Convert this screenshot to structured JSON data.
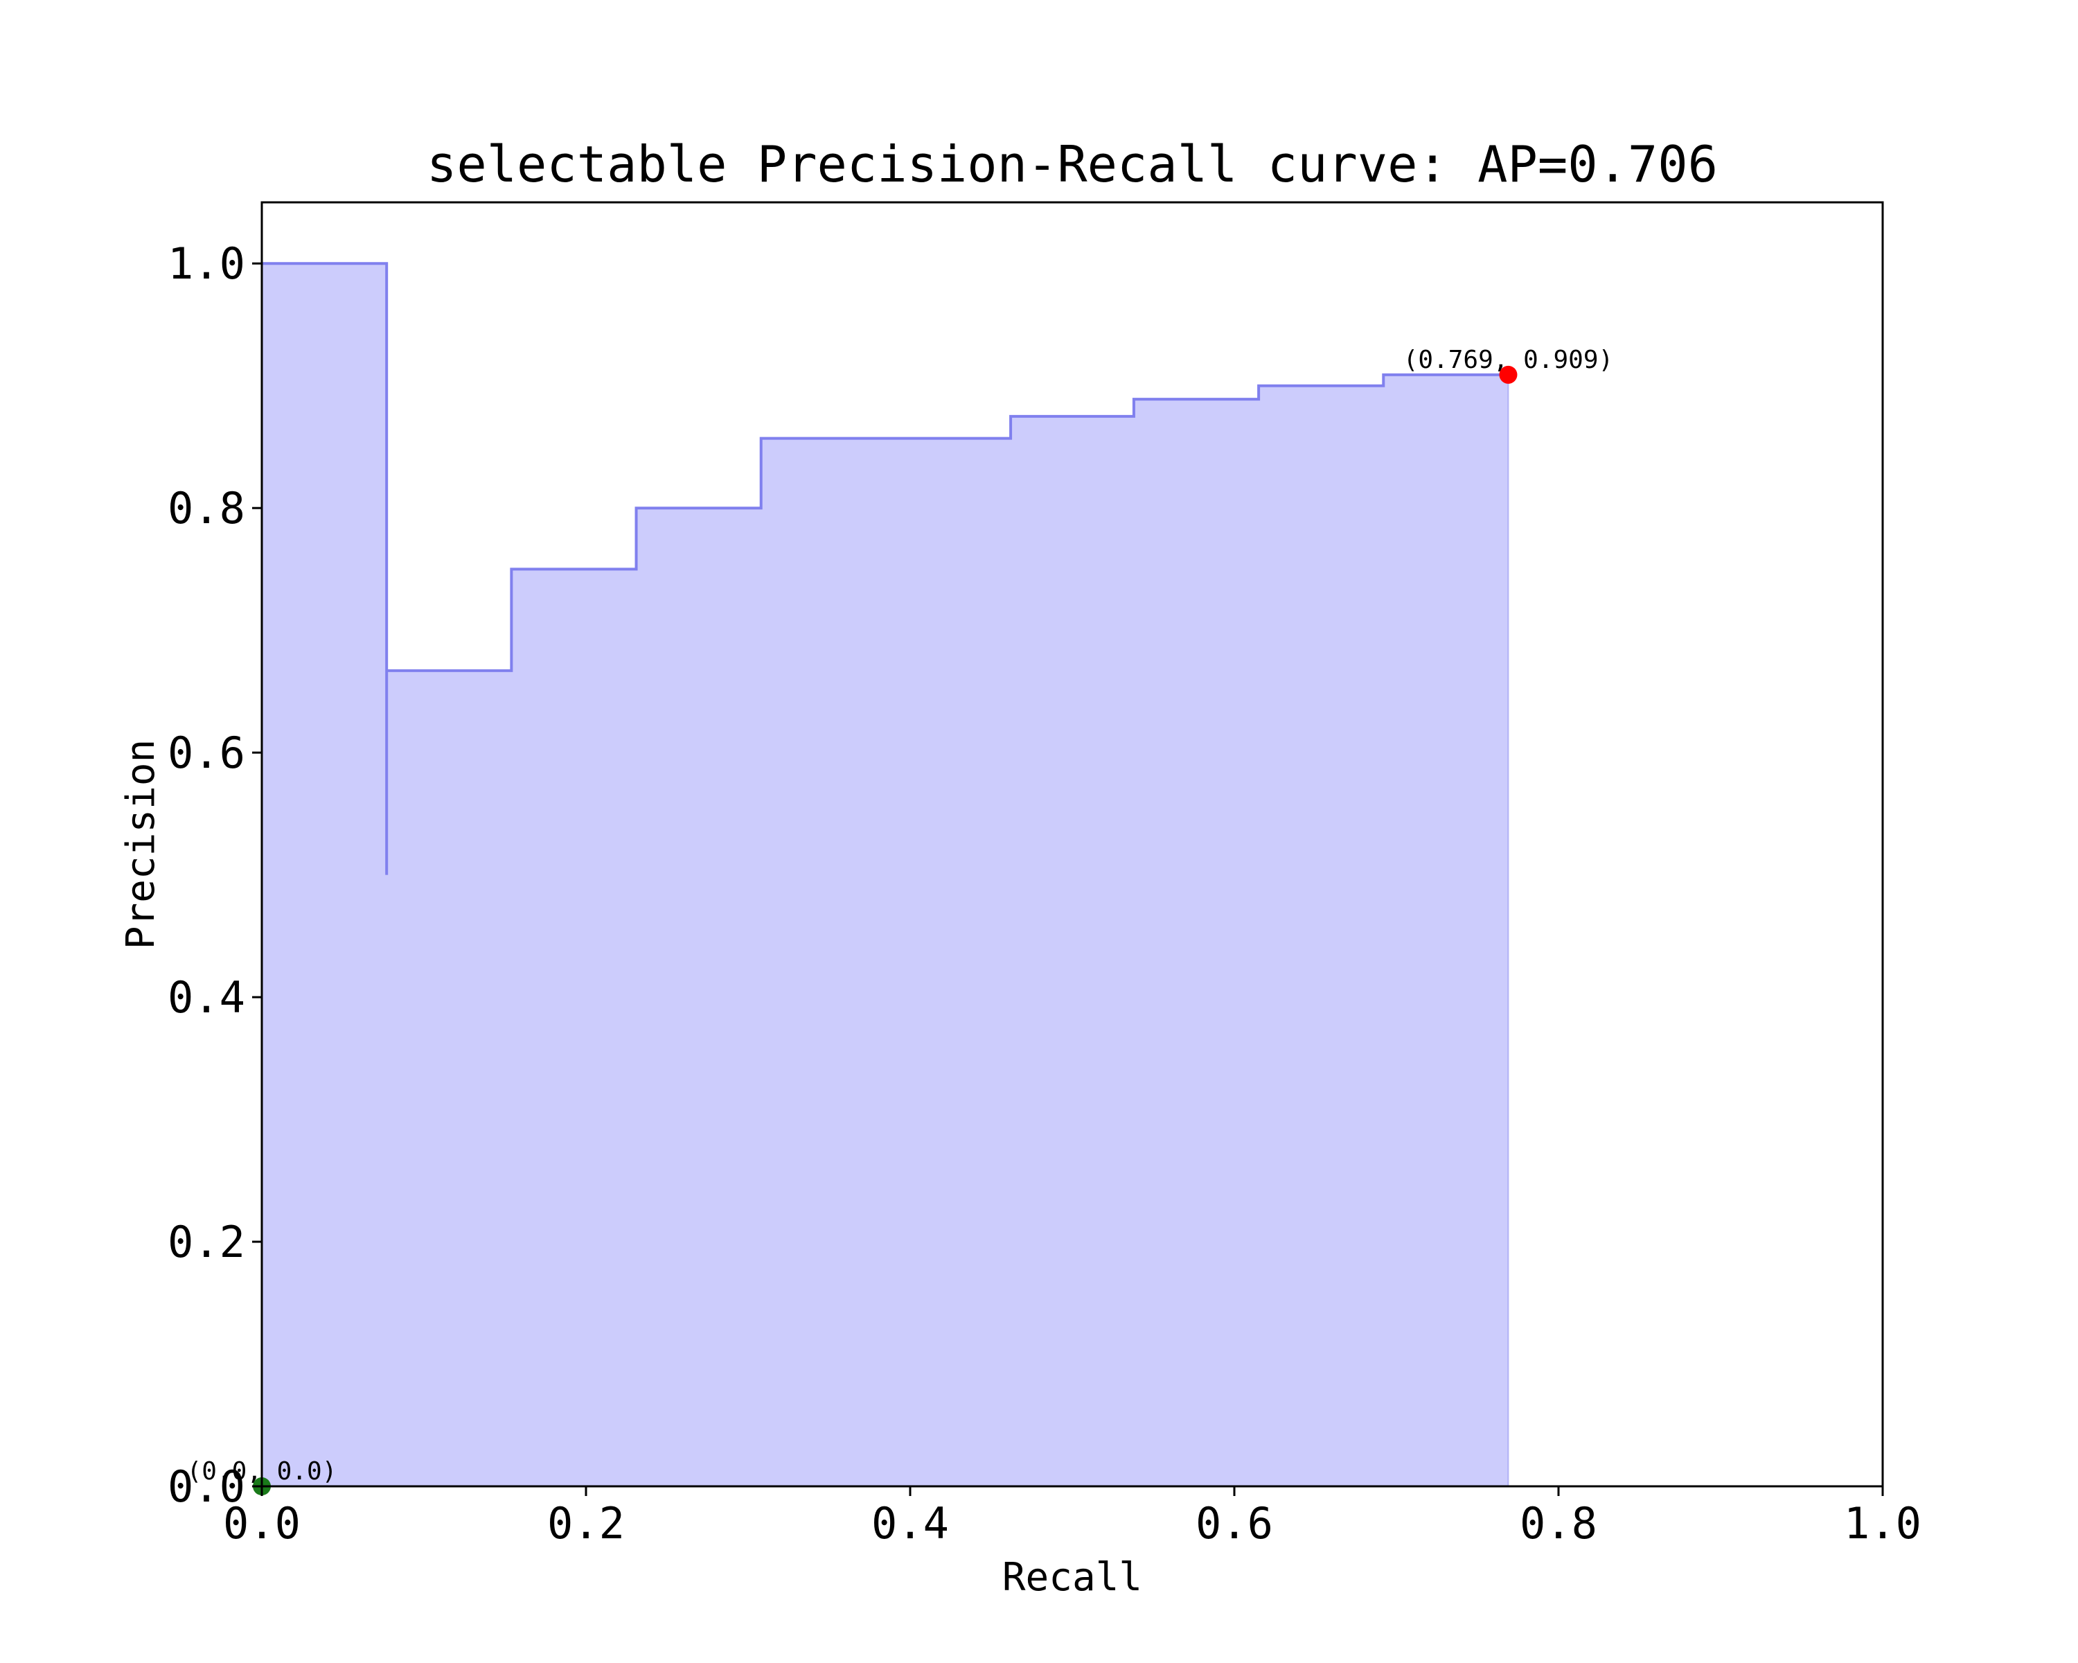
{
  "chart_data": {
    "type": "area",
    "title": "selectable Precision-Recall curve: AP=0.706",
    "xlabel": "Recall",
    "ylabel": "Precision",
    "xlim": [
      0.0,
      1.0
    ],
    "ylim": [
      0.0,
      1.05
    ],
    "grid": false,
    "xticks": [
      0.0,
      0.2,
      0.4,
      0.6,
      0.8,
      1.0
    ],
    "xtick_labels": [
      "0.0",
      "0.2",
      "0.4",
      "0.6",
      "0.8",
      "1.0"
    ],
    "yticks": [
      0.0,
      0.2,
      0.4,
      0.6,
      0.8,
      1.0
    ],
    "ytick_labels": [
      "0.0",
      "0.2",
      "0.4",
      "0.6",
      "0.8",
      "1.0"
    ],
    "colors": {
      "line": "#8080ee",
      "fill": "#ccccfc",
      "end_marker": "#ff0000",
      "start_marker": "#1a7a1a",
      "axes": "#000000"
    },
    "series": [
      {
        "style": "step-post",
        "x": [
          0.0,
          0.077,
          0.077,
          0.154,
          0.231,
          0.308,
          0.385,
          0.462,
          0.538,
          0.615,
          0.692,
          0.769
        ],
        "y": [
          1.0,
          0.5,
          0.667,
          0.75,
          0.8,
          0.857,
          0.857,
          0.875,
          0.889,
          0.9,
          0.909,
          0.909
        ]
      }
    ],
    "annotations": [
      {
        "text": "(0.769, 0.909)",
        "x": 0.769,
        "y": 0.909,
        "marker": "end_marker"
      },
      {
        "text": "(0.0, 0.0)",
        "x": 0.0,
        "y": 0.0,
        "marker": "start_marker"
      }
    ]
  }
}
